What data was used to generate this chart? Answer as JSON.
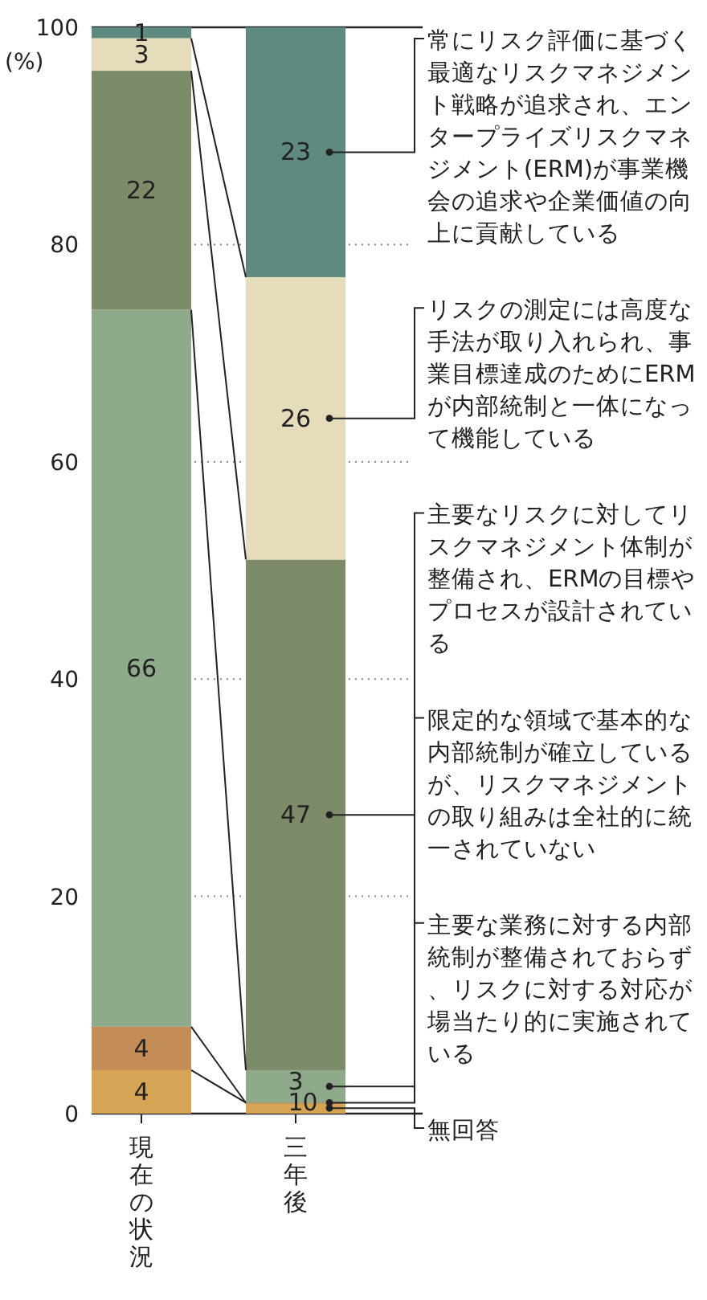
{
  "chart_data": {
    "type": "bar",
    "stacked": true,
    "categories": [
      "現在の状況",
      "三年後"
    ],
    "ylabel": "(%)",
    "ylim": [
      0,
      100
    ],
    "yticks": [
      0,
      20,
      40,
      60,
      80,
      100
    ],
    "grid": "y",
    "data_labels": true,
    "legend": "right",
    "series": [
      {
        "name": "無回答",
        "color": "#d6a455",
        "values": [
          4,
          1
        ]
      },
      {
        "name": "主要な業務に対する内部統制が整備されておらず、リスクに対する対応が場当たり的に実施されている",
        "color": "#c48d57",
        "values": [
          4,
          0
        ]
      },
      {
        "name": "限定的な領域で基本的な内部統制が確立しているが、リスクマネジメントの取り組みは全社的に統一されていない",
        "color": "#8fa98b",
        "values": [
          66,
          3
        ]
      },
      {
        "name": "主要なリスクに対してリスクマネジメント体制が整備され、ERMの目標やプロセスが設計されている",
        "color": "#7d8b69",
        "values": [
          22,
          47
        ]
      },
      {
        "name": "リスクの測定には高度な手法が取り入れられ、事業目標達成のためにERMが内部統制と一体になって機能している",
        "color": "#e4dcba",
        "values": [
          3,
          26
        ]
      },
      {
        "name": "常にリスク評価に基づく最適なリスクマネジメント戦略が追求され、エンタープライズリスクマネジメント(ERM)が事業機会の追求や企業価値の向上に貢献している",
        "color": "#5f8a80",
        "values": [
          1,
          23
        ]
      }
    ]
  }
}
